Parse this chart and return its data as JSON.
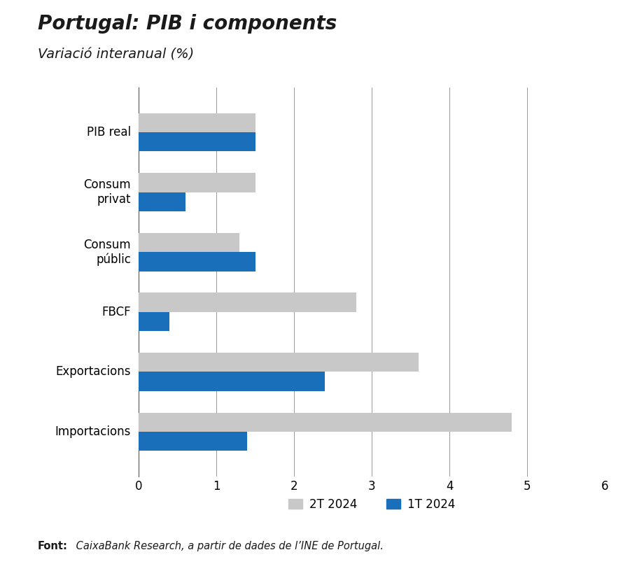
{
  "title": "Portugal: PIB i components",
  "subtitle": "Variació interanual (%)",
  "footer_bold": "Font:",
  "footer_italic": " CaixaBank Research, a partir de dades de l’INE de Portugal.",
  "categories": [
    "PIB real",
    "Consum\nprivat",
    "Consum\npúblic",
    "FBCF",
    "Exportacions",
    "Importacions"
  ],
  "series_2T": [
    1.5,
    1.5,
    1.3,
    2.8,
    3.6,
    4.8
  ],
  "series_1T": [
    1.5,
    0.6,
    1.5,
    0.4,
    2.4,
    1.4
  ],
  "color_2T": "#c8c8c8",
  "color_1T": "#1a6fba",
  "xlim": [
    0,
    6
  ],
  "xticks": [
    0,
    1,
    2,
    3,
    4,
    5,
    6
  ],
  "background_color": "#ffffff",
  "title_fontsize": 20,
  "subtitle_fontsize": 14,
  "tick_fontsize": 12,
  "label_fontsize": 12,
  "legend_fontsize": 12,
  "footer_fontsize": 10.5,
  "bar_height": 0.32,
  "grid_color": "#999999",
  "spine_color": "#555555"
}
